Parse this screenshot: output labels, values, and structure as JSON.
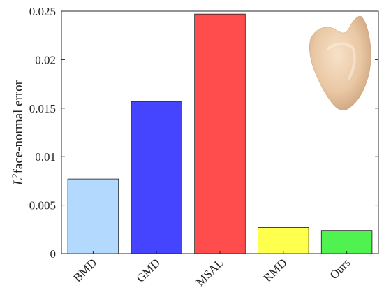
{
  "chart_data": {
    "type": "bar",
    "title": "",
    "xlabel": "",
    "ylabel": "face-normal error",
    "ylabel_symbol": "L",
    "ylabel_sup": "2",
    "categories": [
      "BMD",
      "GMD",
      "MSAL",
      "RMD",
      "Ours"
    ],
    "values": [
      0.0077,
      0.0157,
      0.0247,
      0.0027,
      0.0024
    ],
    "colors": [
      "#b3d9ff",
      "#4545ff",
      "#ff4c4c",
      "#ffff4d",
      "#4ff24f"
    ],
    "ylim": [
      0,
      0.025
    ],
    "yticks": [
      0,
      0.005,
      0.01,
      0.015,
      0.02,
      0.025
    ],
    "ytick_labels": [
      "0",
      "0.005",
      "0.01",
      "0.015",
      "0.02",
      "0.025"
    ],
    "grid": false,
    "legend": "none",
    "inset": "tooth-shape-render"
  }
}
